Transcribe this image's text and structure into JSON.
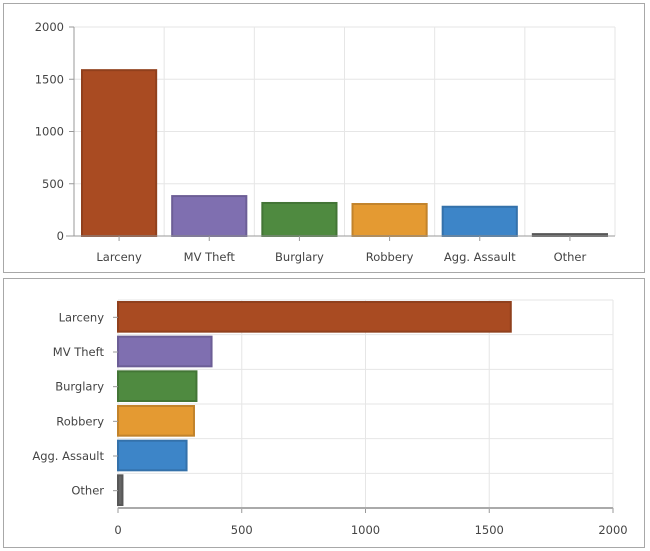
{
  "chart_data": [
    {
      "type": "bar",
      "orientation": "vertical",
      "categories": [
        "Larceny",
        "MV Theft",
        "Burglary",
        "Robbery",
        "Agg. Assault",
        "Other"
      ],
      "values": [
        1587,
        382,
        316,
        306,
        280,
        18
      ],
      "colors": [
        "#a94b22",
        "#7f6fb0",
        "#4f8a40",
        "#e49a32",
        "#3d85c8",
        "#666666"
      ],
      "ylim": [
        0,
        2000
      ],
      "yticks": [
        "0",
        "500",
        "1000",
        "1500",
        "2000"
      ],
      "grid": true
    },
    {
      "type": "bar",
      "orientation": "horizontal",
      "categories": [
        "Larceny",
        "MV Theft",
        "Burglary",
        "Robbery",
        "Agg. Assault",
        "Other"
      ],
      "values": [
        1587,
        378,
        317,
        307,
        277,
        18
      ],
      "colors": [
        "#a94b22",
        "#7f6fb0",
        "#4f8a40",
        "#e49a32",
        "#3d85c8",
        "#666666"
      ],
      "xlim": [
        0,
        2000
      ],
      "xticks": [
        "0",
        "500",
        "1000",
        "1500",
        "2000"
      ],
      "grid": true
    }
  ]
}
